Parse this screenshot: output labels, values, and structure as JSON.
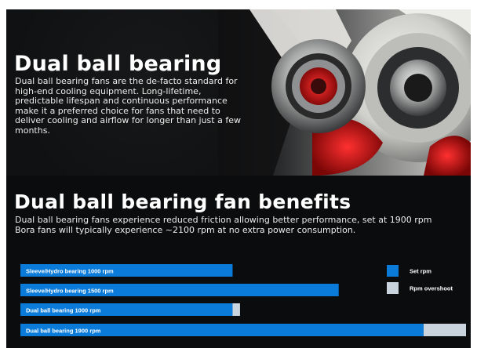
{
  "hero": {
    "title": "Dual ball bearing",
    "body": "Dual ball bearing fans are the de-facto standard for high-end cooling equipment. Long-lifetime, predictable lifespan and continuous performance make it a preferred choice for fans that need to deliver cooling and airflow for longer than just a few months."
  },
  "benefits": {
    "title": "Dual ball bearing fan benefits",
    "body": "Dual ball bearing fans experience reduced friction allowing better performance, set at 1900 rpm Bora fans will typically experience ~2100 rpm at no extra power consumption."
  },
  "chart_data": {
    "type": "bar",
    "orientation": "horizontal",
    "stacked": true,
    "categories": [
      "Sleeve/Hydro bearing 1000 rpm",
      "Sleeve/Hydro bearing 1500 rpm",
      "Dual ball bearing 1000 rpm",
      "Dual ball bearing 1900 rpm"
    ],
    "series": [
      {
        "name": "Set rpm",
        "color": "#0a7bd8",
        "values": [
          1000,
          1500,
          1000,
          1900
        ]
      },
      {
        "name": "Rpm overshoot",
        "color": "#c9d4df",
        "values": [
          0,
          0,
          35,
          200
        ]
      }
    ],
    "xlim": [
      0,
      2100
    ],
    "legend": "right",
    "grid": false
  }
}
